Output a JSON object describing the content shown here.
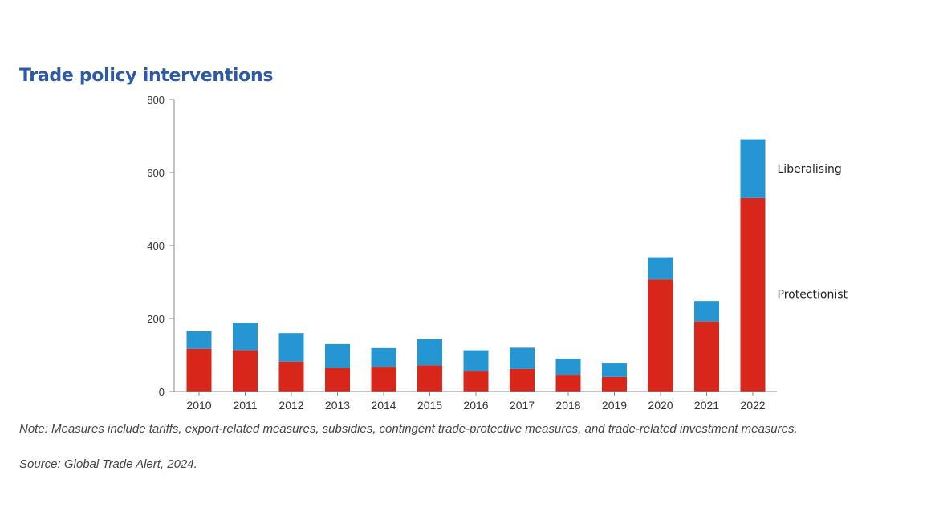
{
  "chart_data": {
    "type": "bar",
    "stacked": true,
    "title": "Trade policy interventions",
    "categories": [
      "2010",
      "2011",
      "2012",
      "2013",
      "2014",
      "2015",
      "2016",
      "2017",
      "2018",
      "2019",
      "2020",
      "2021",
      "2022"
    ],
    "series": [
      {
        "name": "Protectionist",
        "color": "#d8261a",
        "values": [
          117,
          113,
          82,
          65,
          68,
          72,
          57,
          62,
          46,
          40,
          307,
          192,
          530
        ]
      },
      {
        "name": "Liberalising",
        "color": "#2596d1",
        "values": [
          48,
          75,
          78,
          65,
          51,
          72,
          56,
          58,
          44,
          39,
          61,
          56,
          161
        ]
      }
    ],
    "yticks": [
      0,
      200,
      400,
      600,
      800
    ],
    "ylim": [
      0,
      800
    ],
    "grid": false,
    "legend": "right, labels beside last bar"
  },
  "note": "Note: Measures include tariffs, export-related measures, subsidies, contingent trade-protective measures, and trade-related investment measures.",
  "source": "Source: Global Trade Alert, 2024."
}
